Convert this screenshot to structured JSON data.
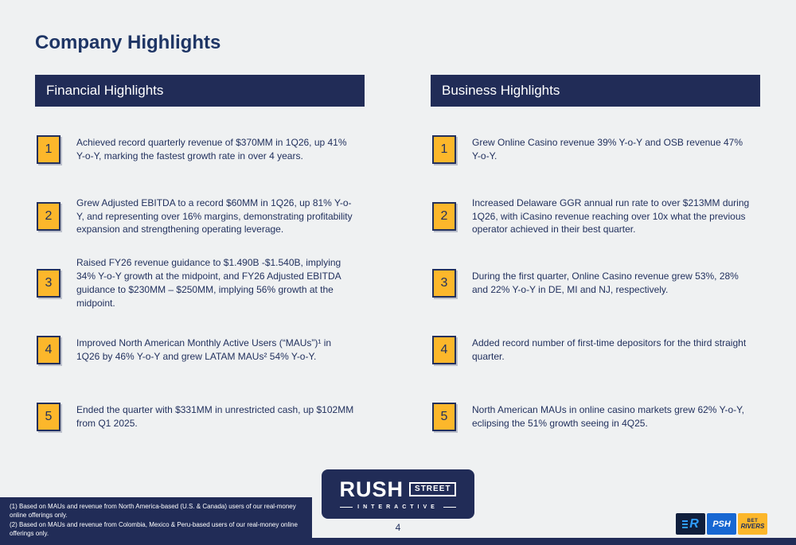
{
  "slide": {
    "title": "Company Highlights",
    "page_number": "4"
  },
  "colors": {
    "background": "#eff1f2",
    "navy": "#212c57",
    "yellow": "#fcb72b",
    "text_navy": "#22315e",
    "rushbet_blue": "#2f9dff",
    "psh_blue": "#1767d2"
  },
  "financial": {
    "header": "Financial Highlights",
    "items": [
      {
        "num": "1",
        "text": "Achieved record quarterly revenue of $370MM in 1Q26, up 41% Y-o-Y, marking the fastest growth rate in over 4 years."
      },
      {
        "num": "2",
        "text": "Grew Adjusted EBITDA to a record $60MM in 1Q26, up 81% Y-o-Y, and representing over 16% margins, demonstrating profitability expansion and strengthening operating leverage."
      },
      {
        "num": "3",
        "text": "Raised FY26 revenue guidance to $1.490B -$1.540B, implying 34% Y-o-Y growth at the midpoint, and FY26 Adjusted EBITDA guidance to $230MM – $250MM, implying 56% growth at the midpoint."
      },
      {
        "num": "4",
        "text": "Improved North American Monthly Active Users (“MAUs”)¹ in 1Q26 by 46% Y-o-Y and grew LATAM MAUs² 54% Y-o-Y."
      },
      {
        "num": "5",
        "text": "Ended the quarter with $331MM in unrestricted cash, up $102MM from Q1 2025."
      }
    ]
  },
  "business": {
    "header": "Business Highlights",
    "items": [
      {
        "num": "1",
        "text": "Grew Online Casino revenue 39% Y-o-Y and OSB revenue 47% Y-o-Y."
      },
      {
        "num": "2",
        "text": "Increased Delaware GGR annual run rate to over $213MM during 1Q26, with iCasino revenue reaching over 10x what the previous operator achieved in their best quarter."
      },
      {
        "num": "3",
        "text": "During the first quarter, Online Casino revenue grew 53%, 28% and 22% Y-o-Y in DE, MI and NJ, respectively."
      },
      {
        "num": "4",
        "text": "Added record number of first-time depositors for the third straight quarter."
      },
      {
        "num": "5",
        "text": "North American MAUs in online casino markets grew 62% Y-o-Y, eclipsing the 51% growth seeing in 4Q25."
      }
    ]
  },
  "footer": {
    "footnote1": "(1) Based on MAUs and revenue from North America-based (U.S. & Canada) users of our real-money online offerings only.",
    "footnote2": "(2) Based on MAUs and revenue from Colombia, Mexico & Peru-based users of our real-money online offerings only.",
    "logo": {
      "rush": "RUSH",
      "street": "STREET",
      "interactive": "INTERACTIVE"
    },
    "brands": {
      "rushbet_letter": "R",
      "psh_label": "PSH",
      "betrivers_line1": "BET",
      "betrivers_line2": "RIVERS"
    }
  }
}
